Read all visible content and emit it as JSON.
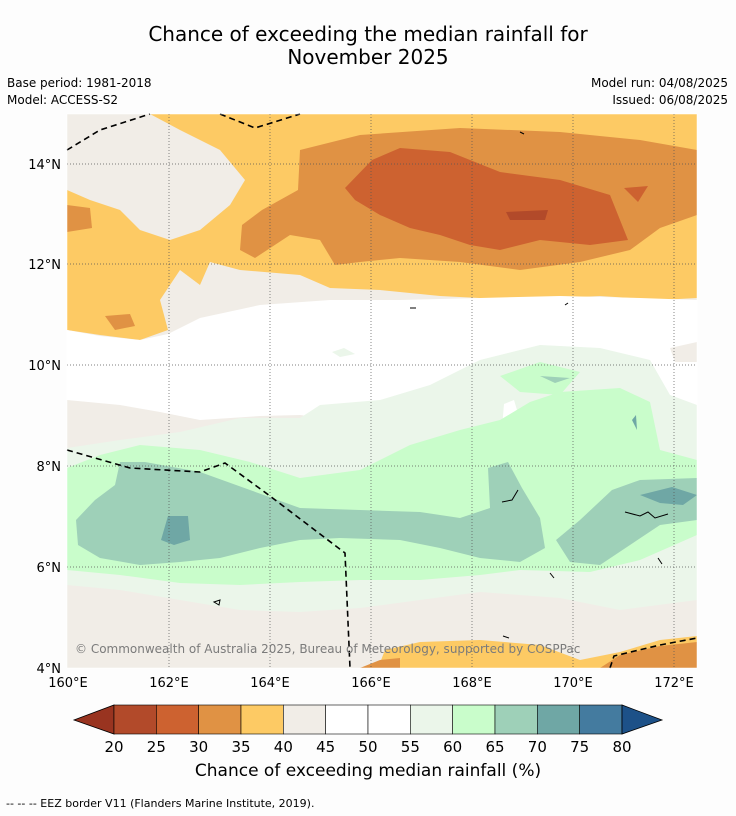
{
  "header": {
    "title_line1": "Chance of exceeding the median rainfall for",
    "title_line2": "November 2025",
    "base_period": "Base period: 1981-2018",
    "model": "Model: ACCESS-S2",
    "model_run": "Model run: 04/08/2025",
    "issued": "Issued: 06/08/2025"
  },
  "map": {
    "region": {
      "lon_min": 160,
      "lon_max": 172.5,
      "lat_min": 4,
      "lat_max": 15
    },
    "lon_ticks": [
      {
        "value": 160,
        "label": "160°E"
      },
      {
        "value": 162,
        "label": "162°E"
      },
      {
        "value": 164,
        "label": "164°E"
      },
      {
        "value": 166,
        "label": "166°E"
      },
      {
        "value": 168,
        "label": "168°E"
      },
      {
        "value": 170,
        "label": "170°E"
      },
      {
        "value": 172,
        "label": "172°E"
      }
    ],
    "lat_ticks": [
      {
        "value": 4,
        "label": "4°N"
      },
      {
        "value": 6,
        "label": "6°N"
      },
      {
        "value": 8,
        "label": "8°N"
      },
      {
        "value": 10,
        "label": "10°N"
      },
      {
        "value": 12,
        "label": "12°N"
      },
      {
        "value": 14,
        "label": "14°N"
      }
    ],
    "copyright": "© Commonwealth of Australia 2025, Bureau of Meteorology, supported by COSPPac"
  },
  "colorbar": {
    "ticks": [
      "20",
      "25",
      "30",
      "35",
      "40",
      "45",
      "50",
      "55",
      "60",
      "65",
      "70",
      "75",
      "80"
    ],
    "colors": [
      "#b24a2a",
      "#cd6230",
      "#e09244",
      "#fdca64",
      "#f1ede7",
      "#ffffff",
      "#ffffff",
      "#ebf6ea",
      "#c9fdcb",
      "#9ed0b8",
      "#6fa7a5",
      "#447b9f"
    ],
    "low_extend_color": "#993420",
    "high_extend_color": "#1d5188",
    "title": "Chance of exceeding median rainfall (%)"
  },
  "footnote": "--  --  -- EEZ border V11 (Flanders Marine Institute, 2019)."
}
